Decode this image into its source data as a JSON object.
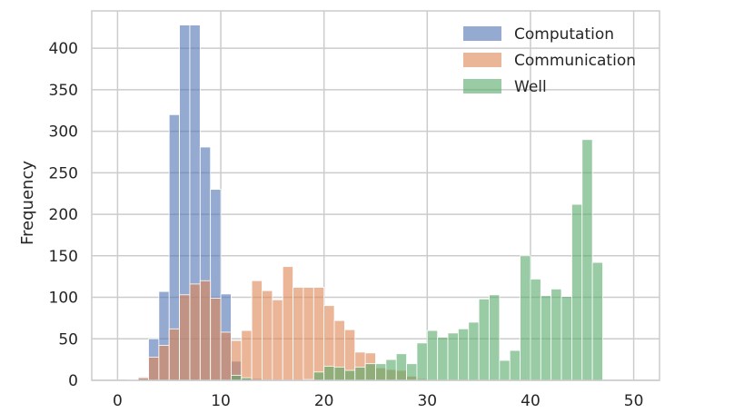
{
  "chart_data": {
    "type": "bar",
    "title": "",
    "xlabel": "",
    "ylabel": "Frequency",
    "xlim": [
      -2.5,
      52.5
    ],
    "ylim": [
      0,
      445
    ],
    "xticks": [
      0,
      10,
      20,
      30,
      40,
      50
    ],
    "yticks": [
      0,
      50,
      100,
      150,
      200,
      250,
      300,
      350,
      400
    ],
    "grid": true,
    "legend_position": "top-right",
    "bin_start": 0,
    "bin_width": 1,
    "series": [
      {
        "name": "Computation",
        "color": "#4c72b0",
        "values": [
          0,
          1,
          4,
          50,
          107,
          320,
          428,
          428,
          281,
          230,
          104,
          23,
          3,
          2,
          1,
          1,
          1,
          1,
          1,
          1,
          0,
          0,
          0,
          0,
          0,
          0,
          0,
          0,
          0,
          0,
          0,
          0,
          0,
          0,
          0,
          0,
          0,
          0,
          0,
          0,
          0,
          0,
          0,
          0,
          0,
          0,
          0,
          0,
          0,
          0,
          0
        ]
      },
      {
        "name": "Communication",
        "color": "#dd8452",
        "values": [
          0,
          0,
          3,
          28,
          42,
          62,
          103,
          116,
          120,
          99,
          58,
          48,
          60,
          120,
          108,
          97,
          137,
          112,
          112,
          112,
          90,
          72,
          61,
          34,
          33,
          15,
          13,
          12,
          5,
          2,
          0,
          0,
          0,
          0,
          0,
          0,
          0,
          0,
          0,
          0,
          0,
          0,
          0,
          0,
          0,
          0,
          0,
          0,
          0,
          0,
          0
        ]
      },
      {
        "name": "Well",
        "color": "#55a868",
        "values": [
          0,
          0,
          0,
          0,
          0,
          0,
          0,
          0,
          0,
          0,
          0,
          6,
          3,
          0,
          0,
          0,
          0,
          0,
          1,
          10,
          17,
          16,
          12,
          16,
          20,
          20,
          25,
          32,
          20,
          45,
          60,
          52,
          57,
          62,
          70,
          98,
          103,
          24,
          36,
          150,
          122,
          102,
          110,
          101,
          212,
          290,
          142,
          0,
          0,
          0,
          0
        ]
      }
    ]
  }
}
